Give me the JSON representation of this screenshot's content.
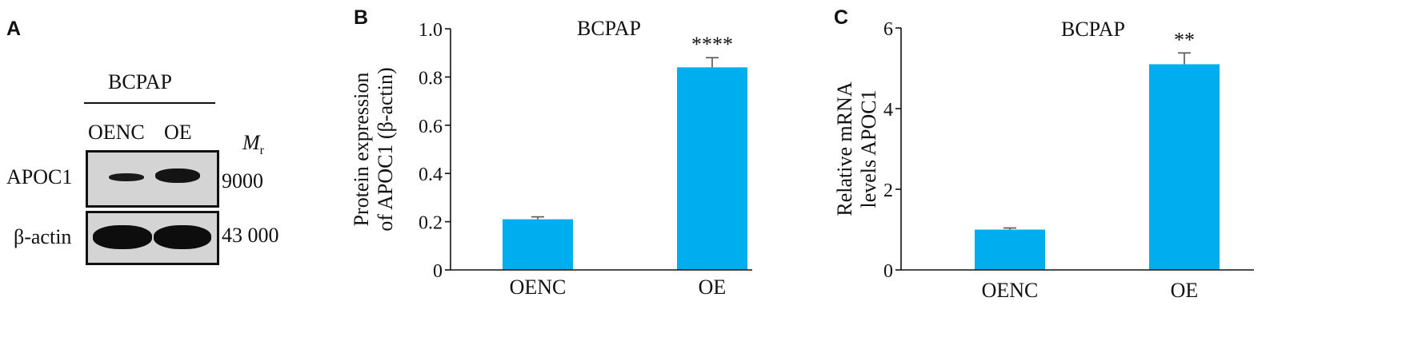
{
  "panel_a": {
    "letter": "A",
    "cell_line": "BCPAP",
    "lanes": [
      "OENC",
      "OE"
    ],
    "mr_symbol": "M",
    "mr_subscript": "r",
    "rows": [
      {
        "label": "APOC1",
        "mr": "9000"
      },
      {
        "label": "β-actin",
        "mr": "43 000"
      }
    ]
  },
  "chart_data": [
    {
      "panel": "B",
      "type": "bar",
      "title": "BCPAP",
      "categories": [
        "OENC",
        "OE"
      ],
      "values": [
        0.21,
        0.84
      ],
      "errors": [
        0.01,
        0.04
      ],
      "significance": [
        "",
        "****"
      ],
      "xlabel": "",
      "ylabel": [
        "Protein expression",
        "of APOC1 (β-actin)"
      ],
      "ylim": [
        0,
        1.0
      ],
      "yticks": [
        0,
        0.2,
        0.4,
        0.6,
        0.8,
        1.0
      ],
      "ytick_labels": [
        "0",
        "0.2",
        "0.4",
        "0.6",
        "0.8",
        "1.0"
      ],
      "bar_color": "#00AEEF",
      "grid": false
    },
    {
      "panel": "C",
      "type": "bar",
      "title": "BCPAP",
      "categories": [
        "OENC",
        "OE"
      ],
      "values": [
        1.0,
        5.1
      ],
      "errors": [
        0.04,
        0.28
      ],
      "significance": [
        "",
        "**"
      ],
      "xlabel": "",
      "ylabel": [
        "Relative mRNA",
        "levels APOC1"
      ],
      "ylim": [
        0,
        6
      ],
      "yticks": [
        0,
        2,
        4,
        6
      ],
      "ytick_labels": [
        "0",
        "2",
        "4",
        "6"
      ],
      "bar_color": "#00AEEF",
      "grid": false
    }
  ]
}
